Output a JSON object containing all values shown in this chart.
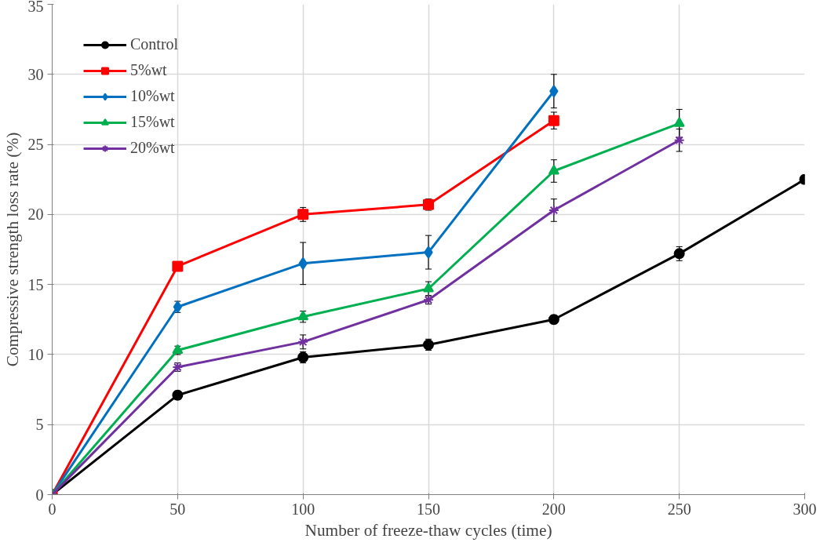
{
  "chart_data": {
    "type": "line",
    "xlabel": "Number of freeze-thaw cycles (time)",
    "ylabel": "Compressive strength loss rate (%)",
    "xlim": [
      0,
      300
    ],
    "xticks": [
      0,
      50,
      100,
      150,
      200,
      250,
      300
    ],
    "ylim": [
      0,
      35
    ],
    "yticks": [
      0,
      5,
      10,
      15,
      20,
      25,
      30,
      35
    ],
    "grid": true,
    "legend": "top left",
    "line_style": "solid",
    "series": [
      {
        "name": "Control",
        "color": "#000000",
        "marker": "circle",
        "x": [
          0,
          50,
          100,
          150,
          200,
          250,
          300
        ],
        "values": [
          0,
          7.1,
          9.8,
          10.7,
          12.5,
          17.2,
          22.5
        ],
        "errors": [
          null,
          0.3,
          0.4,
          0.4,
          0.3,
          0.5,
          0.3
        ]
      },
      {
        "name": "5%wt",
        "color": "#ff0000",
        "marker": "square",
        "x": [
          0,
          50,
          100,
          150,
          200
        ],
        "values": [
          0,
          16.3,
          20.0,
          20.7,
          26.7
        ],
        "errors": [
          null,
          null,
          0.5,
          0.4,
          0.6
        ]
      },
      {
        "name": "10%wt",
        "color": "#0070c0",
        "marker": "diamond",
        "x": [
          0,
          50,
          100,
          150,
          200
        ],
        "values": [
          0,
          13.4,
          16.5,
          17.3,
          28.8
        ],
        "errors": [
          null,
          0.4,
          1.5,
          1.2,
          1.2
        ]
      },
      {
        "name": "15%wt",
        "color": "#00b050",
        "marker": "triangle",
        "x": [
          0,
          50,
          100,
          150,
          200,
          250
        ],
        "values": [
          0,
          10.3,
          12.7,
          14.7,
          23.1,
          26.5
        ],
        "errors": [
          null,
          0.3,
          0.4,
          0.5,
          0.8,
          1.0
        ]
      },
      {
        "name": "20%wt",
        "color": "#7030a0",
        "marker": "cross",
        "x": [
          0,
          50,
          100,
          150,
          200,
          250
        ],
        "values": [
          0,
          9.1,
          10.9,
          13.9,
          20.3,
          25.3
        ],
        "errors": [
          null,
          0.3,
          0.5,
          0.3,
          0.8,
          0.8
        ]
      }
    ]
  }
}
